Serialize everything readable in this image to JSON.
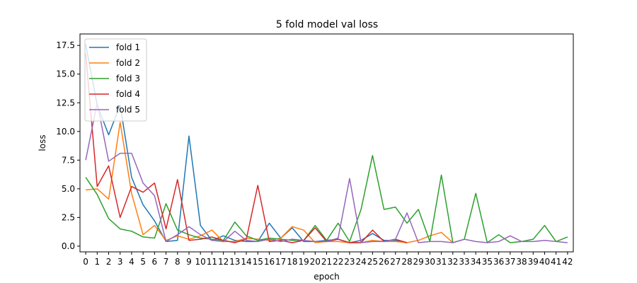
{
  "chart_data": {
    "type": "line",
    "title": "5 fold model val loss",
    "xlabel": "epoch",
    "ylabel": "loss",
    "legend_position": "top-left",
    "grid": false,
    "xlim": [
      -0.5,
      42.5
    ],
    "ylim": [
      -0.5,
      18.5
    ],
    "x": [
      0,
      1,
      2,
      3,
      4,
      5,
      6,
      7,
      8,
      9,
      10,
      11,
      12,
      13,
      14,
      15,
      16,
      17,
      18,
      19,
      20,
      21,
      22,
      23,
      24,
      25,
      26,
      27,
      28,
      29,
      30,
      31,
      32,
      33,
      34,
      35,
      36,
      37,
      38,
      39,
      40,
      41,
      42
    ],
    "yticks": [
      0.0,
      2.5,
      5.0,
      7.5,
      10.0,
      12.5,
      15.0,
      17.5
    ],
    "ytick_labels": [
      "0.0",
      "2.5",
      "5.0",
      "7.5",
      "10.0",
      "12.5",
      "15.0",
      "17.5"
    ],
    "series": [
      {
        "name": "fold 1",
        "color": "#1f77b4",
        "x": [
          0,
          1,
          2,
          3,
          4,
          5,
          6,
          7,
          8,
          9,
          10,
          11,
          12,
          13,
          14,
          15,
          16,
          17,
          18,
          19,
          20,
          21,
          22,
          23,
          24,
          25,
          26,
          27,
          28
        ],
        "values": [
          17.6,
          12.3,
          9.7,
          12.3,
          6.0,
          3.6,
          2.2,
          0.4,
          0.5,
          9.6,
          1.8,
          0.5,
          0.9,
          0.5,
          0.4,
          0.4,
          2.0,
          0.7,
          1.6,
          0.4,
          0.4,
          0.5,
          0.6,
          0.3,
          0.5,
          1.1,
          0.5,
          0.5,
          0.3
        ]
      },
      {
        "name": "fold 2",
        "color": "#ff7f0e",
        "x": [
          0,
          1,
          2,
          3,
          4,
          5,
          6,
          7,
          8,
          9,
          10,
          11,
          12,
          13,
          14,
          15,
          16,
          17,
          18,
          19,
          20,
          21,
          22,
          23,
          24,
          25,
          26,
          27,
          28,
          29,
          30,
          31,
          32
        ],
        "values": [
          4.9,
          5.0,
          4.1,
          10.8,
          4.6,
          1.0,
          1.8,
          0.5,
          0.9,
          0.6,
          0.9,
          1.4,
          0.4,
          0.4,
          0.7,
          0.6,
          0.5,
          0.7,
          1.7,
          1.4,
          0.3,
          0.4,
          0.4,
          0.3,
          0.3,
          0.5,
          0.4,
          0.4,
          0.3,
          0.5,
          0.9,
          1.2,
          0.3
        ]
      },
      {
        "name": "fold 3",
        "color": "#2ca02c",
        "x": [
          0,
          1,
          2,
          3,
          4,
          5,
          6,
          7,
          8,
          9,
          10,
          11,
          12,
          13,
          14,
          15,
          16,
          17,
          18,
          19,
          20,
          21,
          22,
          23,
          24,
          25,
          26,
          27,
          28,
          29,
          30,
          31,
          32,
          33,
          34,
          35,
          36,
          37,
          38,
          39,
          40,
          41,
          42
        ],
        "values": [
          6.0,
          4.5,
          2.4,
          1.5,
          1.3,
          0.8,
          0.7,
          3.7,
          1.4,
          1.0,
          0.7,
          0.6,
          0.5,
          2.1,
          0.9,
          0.5,
          0.7,
          0.6,
          0.5,
          0.5,
          1.8,
          0.5,
          2.0,
          0.4,
          3.2,
          7.9,
          3.2,
          3.4,
          2.0,
          3.2,
          0.4,
          6.2,
          0.3,
          0.6,
          4.6,
          0.3,
          1.0,
          0.3,
          0.4,
          0.6,
          1.8,
          0.4,
          0.8
        ]
      },
      {
        "name": "fold 4",
        "color": "#d62728",
        "x": [
          0,
          1,
          2,
          3,
          4,
          5,
          6,
          7,
          8,
          9,
          10,
          11,
          12,
          13,
          14,
          15,
          16,
          17,
          18,
          19,
          20,
          21,
          22,
          23,
          24,
          25,
          26,
          27,
          28
        ],
        "values": [
          16.8,
          5.2,
          7.0,
          2.5,
          5.2,
          4.7,
          5.5,
          1.5,
          5.8,
          0.5,
          0.6,
          0.8,
          0.5,
          0.3,
          0.6,
          5.3,
          0.4,
          0.5,
          0.3,
          0.5,
          1.6,
          0.4,
          0.6,
          0.3,
          0.3,
          1.4,
          0.4,
          0.6,
          0.3
        ]
      },
      {
        "name": "fold 5",
        "color": "#9467bd",
        "x": [
          0,
          1,
          2,
          3,
          4,
          5,
          6,
          7,
          8,
          9,
          10,
          11,
          12,
          13,
          14,
          15,
          16,
          17,
          18,
          19,
          20,
          21,
          22,
          23,
          24,
          25,
          26,
          27,
          28,
          29,
          30,
          31,
          32,
          33,
          34,
          35,
          36,
          37,
          38,
          39,
          40,
          41,
          42
        ],
        "values": [
          7.5,
          12.5,
          7.4,
          8.1,
          8.1,
          5.5,
          4.4,
          0.4,
          1.0,
          1.7,
          1.0,
          0.5,
          0.4,
          1.3,
          0.5,
          0.4,
          0.6,
          0.4,
          0.6,
          0.5,
          0.4,
          0.4,
          0.7,
          5.9,
          0.3,
          0.4,
          0.4,
          0.6,
          2.9,
          0.3,
          0.4,
          0.4,
          0.3,
          0.6,
          0.4,
          0.3,
          0.4,
          0.9,
          0.4,
          0.4,
          0.5,
          0.4,
          0.3
        ]
      }
    ]
  }
}
